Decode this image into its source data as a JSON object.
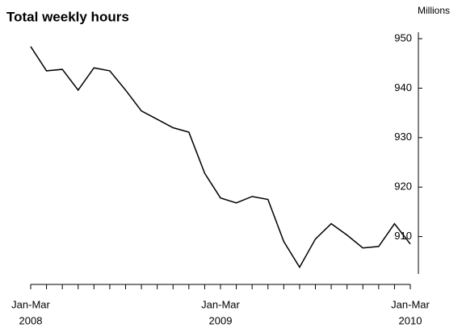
{
  "chart_data": {
    "type": "line",
    "title": "Total weekly hours",
    "y_label": "Millions",
    "categories": [
      "Jan-Mar",
      null,
      null,
      null,
      null,
      null,
      null,
      null,
      null,
      null,
      null,
      null,
      "Jan-Mar",
      null,
      null,
      null,
      null,
      null,
      null,
      null,
      null,
      null,
      null,
      null,
      "Jan-Mar"
    ],
    "category_years": [
      "2008",
      null,
      null,
      null,
      null,
      null,
      null,
      null,
      null,
      null,
      null,
      null,
      "2009",
      null,
      null,
      null,
      null,
      null,
      null,
      null,
      null,
      null,
      null,
      null,
      "2010"
    ],
    "series": [
      {
        "name": "Total weekly hours",
        "color": "#000000",
        "values": [
          948.4,
          943.5,
          943.8,
          939.6,
          944.1,
          943.5,
          939.6,
          935.4,
          933.7,
          932.0,
          931.1,
          922.8,
          917.8,
          916.8,
          918.1,
          917.5,
          909.0,
          903.8,
          909.5,
          912.6,
          910.3,
          907.7,
          908.0,
          912.6,
          908.5
        ]
      }
    ],
    "ylim": [
      900,
      950
    ],
    "yticks": [
      910,
      920,
      930,
      940,
      950
    ],
    "grid": false
  }
}
